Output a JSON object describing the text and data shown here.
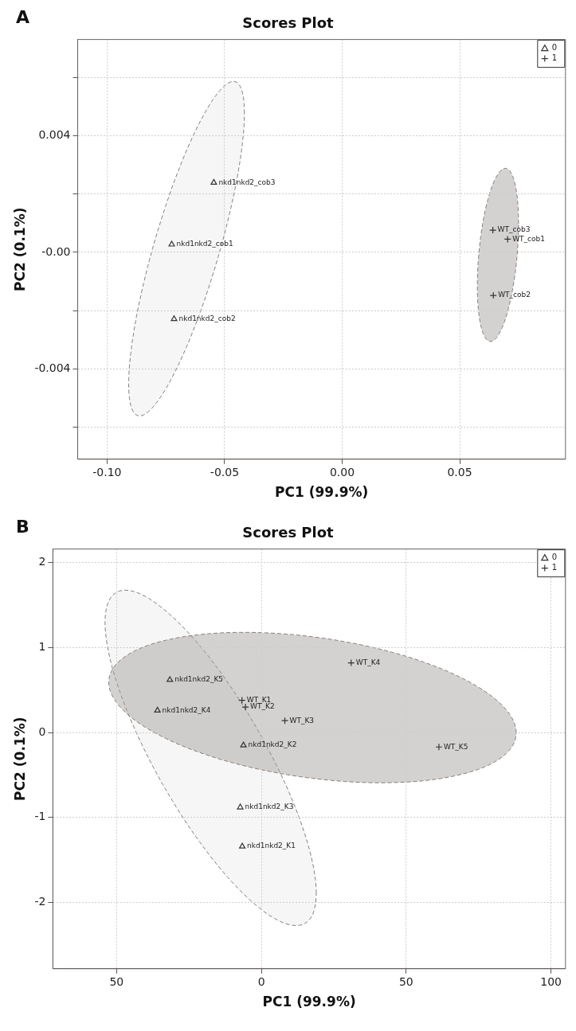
{
  "chart_data": [
    {
      "type": "scatter",
      "title": "Scores Plot",
      "xlabel": "PC1 (99.9%)",
      "ylabel": "PC2 (0.1%)",
      "xlim": [
        -0.1125,
        0.095
      ],
      "ylim": [
        -0.0071,
        0.0073
      ],
      "xticks": [
        {
          "value": -0.1,
          "label": "-0.10"
        },
        {
          "value": -0.05,
          "label": "-0.05"
        },
        {
          "value": 0,
          "label": "0.00"
        },
        {
          "value": 0.05,
          "label": "0.05"
        }
      ],
      "yticks": [
        {
          "value": -0.006,
          "label": null
        },
        {
          "value": -0.004,
          "label": "-0.004"
        },
        {
          "value": -0.002,
          "label": null
        },
        {
          "value": 0,
          "label": "-0.00"
        },
        {
          "value": 0.002,
          "label": null
        },
        {
          "value": 0.004,
          "label": "0.004"
        },
        {
          "value": 0.006,
          "label": null
        }
      ],
      "grid": true,
      "legend": "top right",
      "series": [
        {
          "name": "0",
          "color": "#333333",
          "marker": "triangle",
          "x": [
            -0.0725,
            -0.0715,
            -0.0546
          ],
          "values": [
            0.00027,
            -0.00229,
            0.00239
          ]
        },
        {
          "name": "1",
          "color": "#333333",
          "marker": "cross",
          "x": [
            0.0704,
            0.0643,
            0.0641
          ],
          "values": [
            0.00045,
            -0.00148,
            0.00076
          ]
        }
      ],
      "annotations": [
        "A",
        {
          "text": "nkd1nkd2_cob1",
          "x": -0.0725,
          "y": 0.00027
        },
        {
          "text": "nkd1nkd2_cob2",
          "x": -0.0715,
          "y": -0.00229
        },
        {
          "text": "nkd1nkd2_cob3",
          "x": -0.0546,
          "y": 0.00239
        },
        {
          "text": "WT_cob1",
          "x": 0.0704,
          "y": 0.00045
        },
        {
          "text": "WT_cob2",
          "x": 0.0643,
          "y": -0.00148
        },
        {
          "text": "WT_cob3",
          "x": 0.0641,
          "y": 0.00076
        }
      ]
    },
    {
      "type": "scatter",
      "title": "Scores Plot",
      "xlabel": "PC1 (99.9%)",
      "ylabel": "PC2 (0.1%)",
      "xlim": [
        -72,
        105
      ],
      "ylim": [
        -2.78,
        2.16
      ],
      "xticks": [
        {
          "value": -50,
          "label": "50"
        },
        0,
        50,
        100
      ],
      "yticks": [
        -2,
        -1,
        0,
        1,
        2
      ],
      "grid": true,
      "legend": "top right",
      "series": [
        {
          "name": "0",
          "color": "#333333",
          "marker": "triangle",
          "x": [
            -6.6,
            -6.2,
            -7.3,
            -35.9,
            -31.6
          ],
          "values": [
            -1.34,
            -0.15,
            -0.88,
            0.26,
            0.62
          ]
        },
        {
          "name": "1",
          "color": "#333333",
          "marker": "cross",
          "x": [
            -6.7,
            -5.5,
            8.1,
            31.0,
            61.3
          ],
          "values": [
            0.38,
            0.3,
            0.14,
            0.82,
            -0.17
          ]
        }
      ],
      "annotations": [
        "B",
        {
          "text": "nkd1nkd2_K1",
          "x": -6.6,
          "y": -1.34
        },
        {
          "text": "nkd1nkd2_K2",
          "x": -6.2,
          "y": -0.15
        },
        {
          "text": "nkd1nkd2_K3",
          "x": -7.3,
          "y": -0.88
        },
        {
          "text": "nkd1nkd2_K4",
          "x": -35.9,
          "y": 0.26
        },
        {
          "text": "nkd1nkd2_K5",
          "x": -31.6,
          "y": 0.62
        },
        {
          "text": "WT_K1",
          "x": -6.7,
          "y": 0.38
        },
        {
          "text": "WT_K2",
          "x": -5.5,
          "y": 0.3
        },
        {
          "text": "WT_K3",
          "x": 8.1,
          "y": 0.14
        },
        {
          "text": "WT_K4",
          "x": 31.0,
          "y": 0.82
        },
        {
          "text": "WT_K5",
          "x": 61.3,
          "y": -0.17
        }
      ]
    }
  ]
}
